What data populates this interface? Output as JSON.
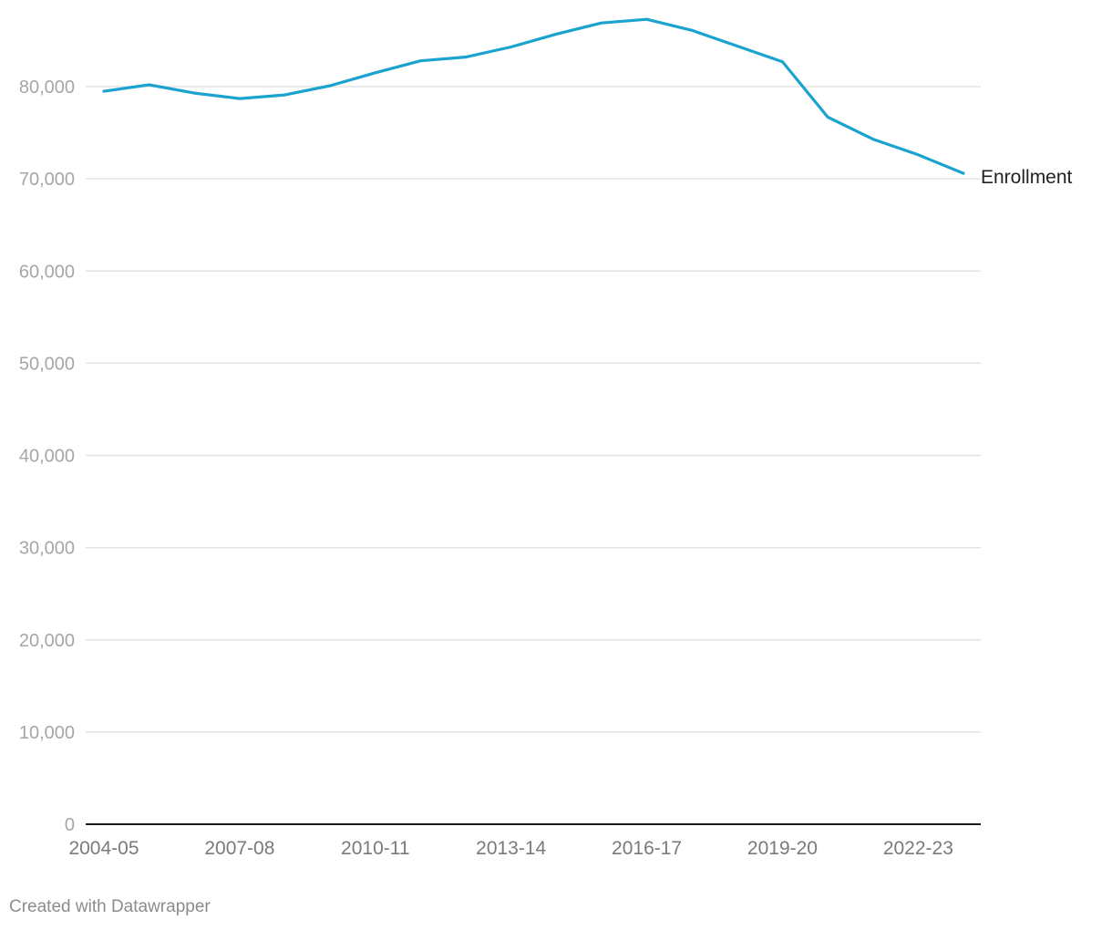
{
  "chart_data": {
    "type": "line",
    "title": "",
    "xlabel": "",
    "ylabel": "",
    "ylim": [
      0,
      90000
    ],
    "grid": true,
    "x": [
      "2004-05",
      "2005-06",
      "2006-07",
      "2007-08",
      "2008-09",
      "2009-10",
      "2010-11",
      "2011-12",
      "2012-13",
      "2013-14",
      "2014-15",
      "2015-16",
      "2016-17",
      "2017-18",
      "2018-19",
      "2019-20",
      "2020-21",
      "2021-22",
      "2022-23",
      "2023-24"
    ],
    "x_tick_labels": [
      "2004-05",
      "2007-08",
      "2010-11",
      "2013-14",
      "2016-17",
      "2019-20",
      "2022-23"
    ],
    "y_ticks": [
      0,
      10000,
      20000,
      30000,
      40000,
      50000,
      60000,
      70000,
      80000
    ],
    "y_tick_labels": [
      "0",
      "10,000",
      "20,000",
      "30,000",
      "40,000",
      "50,000",
      "60,000",
      "70,000",
      "80,000"
    ],
    "series": [
      {
        "name": "Enrollment",
        "color": "#1ba3cf",
        "values": [
          79500,
          80200,
          79300,
          78700,
          79100,
          80100,
          81500,
          82800,
          83200,
          84300,
          85700,
          86900,
          87300,
          86100,
          84400,
          82700,
          76700,
          74300,
          72600,
          70600
        ]
      }
    ]
  },
  "footer": {
    "credit": "Created with Datawrapper"
  }
}
